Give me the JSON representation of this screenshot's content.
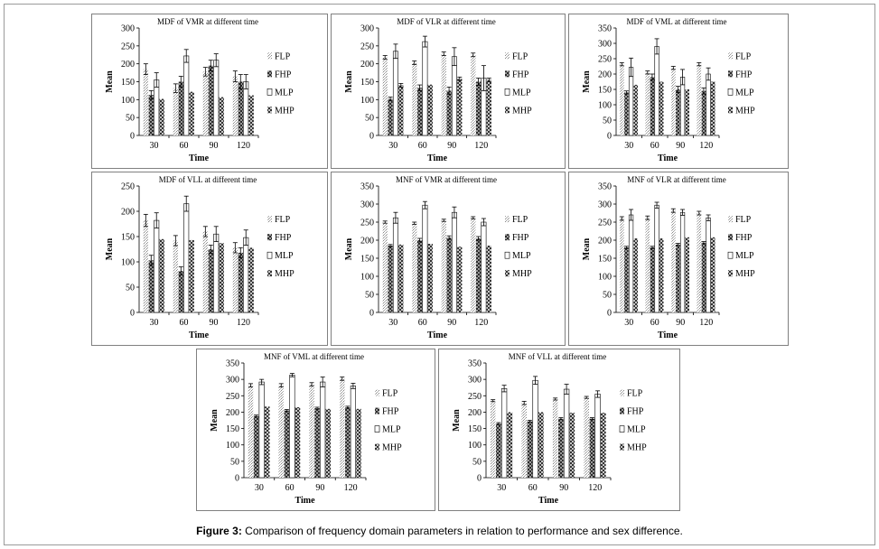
{
  "figure": {
    "caption_label": "Figure 3:",
    "caption_text": " Comparison of frequency domain parameters in relation to performance and sex difference."
  },
  "legend": {
    "FLP": "FLP",
    "FHP": "FHP",
    "MLP": "MLP",
    "MHP": "MHP"
  },
  "chart_data": [
    {
      "type": "bar",
      "title": "MDF of VMR at different time",
      "xlabel": "Time",
      "ylabel": "Mean",
      "categories": [
        "30",
        "60",
        "90",
        "120"
      ],
      "ylim": [
        0,
        300
      ],
      "yticks": [
        0,
        50,
        100,
        150,
        200,
        250,
        300
      ],
      "legend_position": "right",
      "series": [
        {
          "name": "FLP",
          "values": [
            185,
            132,
            178,
            165
          ],
          "errors": [
            15,
            12,
            12,
            15
          ]
        },
        {
          "name": "FHP",
          "values": [
            113,
            150,
            195,
            150
          ],
          "errors": [
            12,
            15,
            15,
            20
          ]
        },
        {
          "name": "MLP",
          "values": [
            155,
            222,
            210,
            150
          ],
          "errors": [
            20,
            18,
            18,
            20
          ]
        },
        {
          "name": "MHP",
          "values": [
            102,
            122,
            107,
            112
          ],
          "errors": [
            0,
            0,
            0,
            0
          ]
        }
      ]
    },
    {
      "type": "bar",
      "title": "MDF of VLR at different time",
      "xlabel": "Time",
      "ylabel": "Mean",
      "categories": [
        "30",
        "60",
        "90",
        "120"
      ],
      "ylim": [
        0,
        300
      ],
      "yticks": [
        0,
        50,
        100,
        150,
        200,
        250,
        300
      ],
      "legend_position": "right",
      "series": [
        {
          "name": "FLP",
          "values": [
            218,
            203,
            228,
            225
          ],
          "errors": [
            5,
            5,
            5,
            5
          ]
        },
        {
          "name": "FHP",
          "values": [
            102,
            133,
            125,
            150
          ],
          "errors": [
            5,
            8,
            10,
            10
          ]
        },
        {
          "name": "MLP",
          "values": [
            235,
            262,
            220,
            160
          ],
          "errors": [
            20,
            15,
            25,
            35
          ]
        },
        {
          "name": "MHP",
          "values": [
            140,
            142,
            158,
            155
          ],
          "errors": [
            5,
            0,
            5,
            5
          ]
        }
      ]
    },
    {
      "type": "bar",
      "title": "MDF of VML at different time",
      "xlabel": "Time",
      "ylabel": "Mean",
      "categories": [
        "30",
        "60",
        "90",
        "120"
      ],
      "ylim": [
        0,
        350
      ],
      "yticks": [
        0,
        50,
        100,
        150,
        200,
        250,
        300,
        350
      ],
      "legend_position": "right",
      "series": [
        {
          "name": "FLP",
          "values": [
            232,
            205,
            220,
            232
          ],
          "errors": [
            5,
            5,
            5,
            5
          ]
        },
        {
          "name": "FHP",
          "values": [
            140,
            190,
            150,
            145
          ],
          "errors": [
            5,
            10,
            10,
            10
          ]
        },
        {
          "name": "MLP",
          "values": [
            222,
            290,
            190,
            200
          ],
          "errors": [
            30,
            25,
            25,
            20
          ]
        },
        {
          "name": "MHP",
          "values": [
            165,
            175,
            150,
            175
          ],
          "errors": [
            0,
            0,
            0,
            0
          ]
        }
      ]
    },
    {
      "type": "bar",
      "title": "MDF of VLL at different time",
      "xlabel": "Time",
      "ylabel": "Mean",
      "categories": [
        "30",
        "60",
        "90",
        "120"
      ],
      "ylim": [
        0,
        250
      ],
      "yticks": [
        0,
        50,
        100,
        150,
        200,
        250
      ],
      "legend_position": "right",
      "series": [
        {
          "name": "FLP",
          "values": [
            182,
            142,
            160,
            128
          ],
          "errors": [
            12,
            10,
            10,
            10
          ]
        },
        {
          "name": "FHP",
          "values": [
            103,
            82,
            125,
            118
          ],
          "errors": [
            10,
            8,
            8,
            10
          ]
        },
        {
          "name": "MLP",
          "values": [
            182,
            215,
            155,
            148
          ],
          "errors": [
            15,
            15,
            15,
            15
          ]
        },
        {
          "name": "MHP",
          "values": [
            145,
            143,
            137,
            128
          ],
          "errors": [
            0,
            0,
            0,
            0
          ]
        }
      ]
    },
    {
      "type": "bar",
      "title": "MNF of VMR at different time",
      "xlabel": "Time",
      "ylabel": "Mean",
      "categories": [
        "30",
        "60",
        "90",
        "120"
      ],
      "ylim": [
        0,
        350
      ],
      "yticks": [
        0,
        50,
        100,
        150,
        200,
        250,
        300,
        350
      ],
      "legend_position": "right",
      "series": [
        {
          "name": "FLP",
          "values": [
            250,
            247,
            255,
            262
          ],
          "errors": [
            3,
            3,
            3,
            3
          ]
        },
        {
          "name": "FHP",
          "values": [
            185,
            200,
            207,
            205
          ],
          "errors": [
            3,
            5,
            5,
            5
          ]
        },
        {
          "name": "MLP",
          "values": [
            262,
            297,
            277,
            250
          ],
          "errors": [
            15,
            10,
            15,
            10
          ]
        },
        {
          "name": "MHP",
          "values": [
            188,
            190,
            182,
            185
          ],
          "errors": [
            0,
            0,
            0,
            0
          ]
        }
      ]
    },
    {
      "type": "bar",
      "title": "MNF of VLR at different time",
      "xlabel": "Time",
      "ylabel": "Mean",
      "categories": [
        "30",
        "60",
        "90",
        "120"
      ],
      "ylim": [
        0,
        350
      ],
      "yticks": [
        0,
        50,
        100,
        150,
        200,
        250,
        300,
        350
      ],
      "legend_position": "right",
      "series": [
        {
          "name": "FLP",
          "values": [
            260,
            262,
            282,
            275
          ],
          "errors": [
            5,
            5,
            5,
            5
          ]
        },
        {
          "name": "FHP",
          "values": [
            180,
            180,
            188,
            193
          ],
          "errors": [
            3,
            3,
            3,
            3
          ]
        },
        {
          "name": "MLP",
          "values": [
            270,
            297,
            277,
            262
          ],
          "errors": [
            15,
            8,
            8,
            8
          ]
        },
        {
          "name": "MHP",
          "values": [
            205,
            205,
            208,
            208
          ],
          "errors": [
            0,
            0,
            0,
            0
          ]
        }
      ]
    },
    {
      "type": "bar",
      "title": "MNF of VML at different time",
      "xlabel": "Time",
      "ylabel": "Mean",
      "categories": [
        "30",
        "60",
        "90",
        "120"
      ],
      "ylim": [
        0,
        350
      ],
      "yticks": [
        0,
        50,
        100,
        150,
        200,
        250,
        300,
        350
      ],
      "legend_position": "right",
      "series": [
        {
          "name": "FLP",
          "values": [
            282,
            282,
            285,
            302
          ],
          "errors": [
            5,
            5,
            5,
            5
          ]
        },
        {
          "name": "FHP",
          "values": [
            188,
            205,
            212,
            215
          ],
          "errors": [
            3,
            3,
            3,
            3
          ]
        },
        {
          "name": "MLP",
          "values": [
            292,
            313,
            292,
            280
          ],
          "errors": [
            8,
            5,
            15,
            8
          ]
        },
        {
          "name": "MHP",
          "values": [
            217,
            215,
            210,
            210
          ],
          "errors": [
            0,
            0,
            0,
            0
          ]
        }
      ]
    },
    {
      "type": "bar",
      "title": "MNF of VLL at different time",
      "xlabel": "Time",
      "ylabel": "Mean",
      "categories": [
        "30",
        "60",
        "90",
        "120"
      ],
      "ylim": [
        0,
        350
      ],
      "yticks": [
        0,
        50,
        100,
        150,
        200,
        250,
        300,
        350
      ],
      "legend_position": "right",
      "series": [
        {
          "name": "FLP",
          "values": [
            235,
            228,
            240,
            245
          ],
          "errors": [
            3,
            5,
            3,
            3
          ]
        },
        {
          "name": "FHP",
          "values": [
            165,
            172,
            180,
            180
          ],
          "errors": [
            3,
            3,
            3,
            3
          ]
        },
        {
          "name": "MLP",
          "values": [
            272,
            297,
            270,
            255
          ],
          "errors": [
            10,
            12,
            15,
            10
          ]
        },
        {
          "name": "MHP",
          "values": [
            200,
            200,
            198,
            198
          ],
          "errors": [
            0,
            0,
            0,
            0
          ]
        }
      ]
    }
  ]
}
